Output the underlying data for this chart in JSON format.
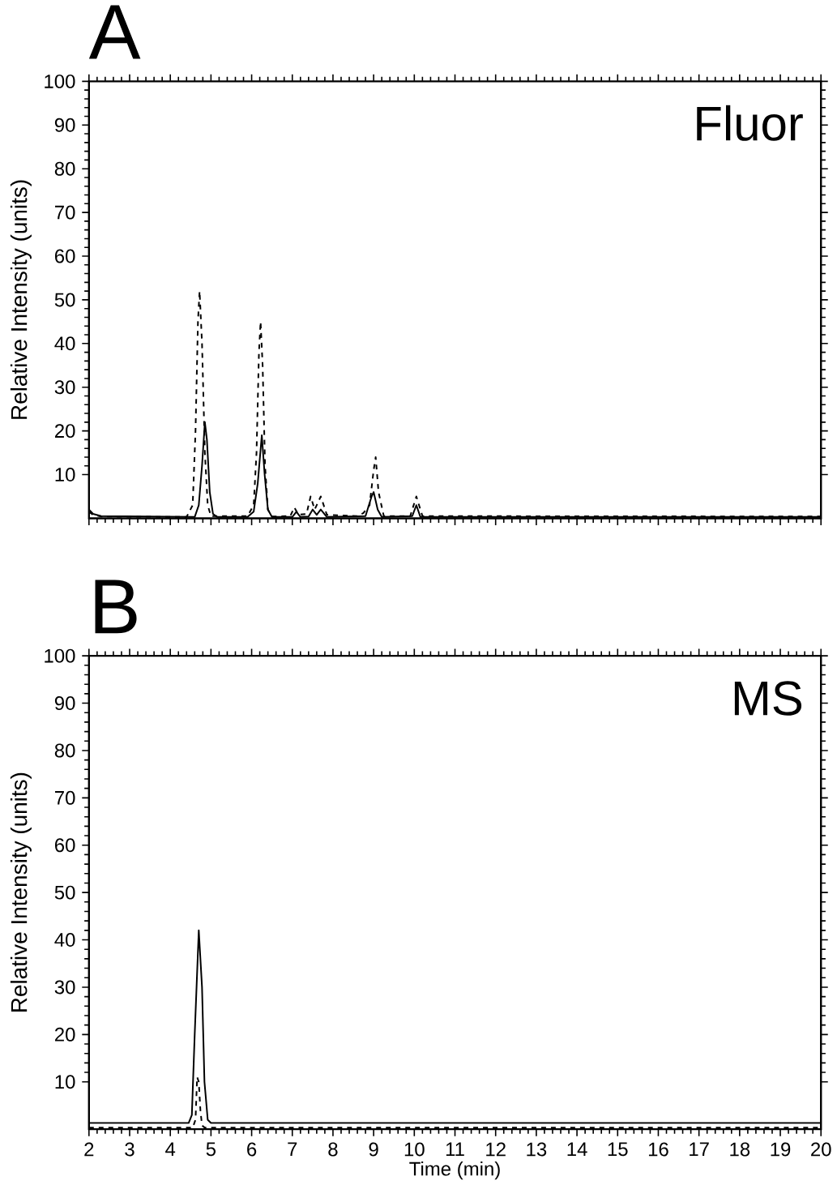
{
  "chart_data": [
    {
      "type": "line",
      "title": "A",
      "ylabel": "Relative Intensity (units)",
      "annotations": [
        "Fluor"
      ],
      "xlim": [
        2,
        20
      ],
      "ylim": [
        0,
        100
      ],
      "xticks": [
        2,
        3,
        4,
        5,
        6,
        7,
        8,
        9,
        10,
        11,
        12,
        13,
        14,
        15,
        16,
        17,
        18,
        19,
        20
      ],
      "yticks": [
        10,
        20,
        30,
        40,
        50,
        60,
        70,
        80,
        90,
        100
      ],
      "tick_labels": "y",
      "series": [
        {
          "color": "#000000",
          "line_style": "dashed",
          "x": [
            2.0,
            2.1,
            2.3,
            4.4,
            4.55,
            4.62,
            4.68,
            4.72,
            4.78,
            4.85,
            4.92,
            5.0,
            5.9,
            6.05,
            6.12,
            6.18,
            6.22,
            6.27,
            6.33,
            6.4,
            6.5,
            6.95,
            7.05,
            7.15,
            7.35,
            7.45,
            7.55,
            7.7,
            7.85,
            8.6,
            8.75,
            8.9,
            9.0,
            9.05,
            9.12,
            9.25,
            9.9,
            10.05,
            10.2,
            20
          ],
          "values": [
            1.5,
            0.8,
            0.4,
            0.3,
            3,
            20,
            45,
            52,
            40,
            15,
            3,
            0.5,
            0.5,
            3,
            15,
            38,
            45,
            35,
            12,
            2,
            0.4,
            0.5,
            2.5,
            0.8,
            1,
            5,
            2,
            5,
            0.8,
            0.5,
            1.2,
            3,
            11,
            14,
            6,
            0.5,
            0.5,
            5,
            0.5,
            0.4
          ]
        },
        {
          "color": "#000000",
          "line_style": "solid",
          "x": [
            2.0,
            2.1,
            2.3,
            4.6,
            4.7,
            4.78,
            4.85,
            4.9,
            4.97,
            5.05,
            5.15,
            5.9,
            6.05,
            6.15,
            6.25,
            6.32,
            6.4,
            6.5,
            7.0,
            7.1,
            7.2,
            7.4,
            7.5,
            7.6,
            7.7,
            7.85,
            8.8,
            8.95,
            9.0,
            9.1,
            9.2,
            9.95,
            10.05,
            10.15,
            20
          ],
          "values": [
            2,
            1,
            0.5,
            0.3,
            3,
            12,
            22,
            18,
            6,
            1,
            0.3,
            0.3,
            1.5,
            8,
            19,
            10,
            2,
            0.3,
            0.3,
            1.5,
            0.3,
            0.4,
            2,
            0.8,
            2,
            0.3,
            0.5,
            5,
            6,
            2,
            0.3,
            0.5,
            3,
            0.3,
            0.3
          ]
        }
      ]
    },
    {
      "type": "line",
      "title": "B",
      "xlabel": "Time (min)",
      "ylabel": "Relative Intensity (units)",
      "annotations": [
        "MS"
      ],
      "xlim": [
        2,
        20
      ],
      "ylim": [
        0,
        100
      ],
      "xticks": [
        2,
        3,
        4,
        5,
        6,
        7,
        8,
        9,
        10,
        11,
        12,
        13,
        14,
        15,
        16,
        17,
        18,
        19,
        20
      ],
      "yticks": [
        10,
        20,
        30,
        40,
        50,
        60,
        70,
        80,
        90,
        100
      ],
      "series": [
        {
          "color": "#000000",
          "line_style": "solid",
          "x": [
            2,
            3,
            4,
            4.45,
            4.53,
            4.6,
            4.7,
            4.78,
            4.84,
            4.92,
            5.0,
            10,
            15,
            20
          ],
          "values": [
            1.3,
            1.3,
            1.3,
            1.3,
            3,
            20,
            42,
            30,
            10,
            2,
            1.3,
            1.3,
            1.3,
            1.3
          ]
        },
        {
          "color": "#000000",
          "line_style": "dashed",
          "x": [
            2,
            4.55,
            4.62,
            4.66,
            4.7,
            4.74,
            4.78,
            4.85,
            20
          ],
          "values": [
            0.3,
            0.3,
            2,
            11,
            10,
            4,
            0.8,
            0.3,
            0.3
          ]
        }
      ]
    }
  ]
}
